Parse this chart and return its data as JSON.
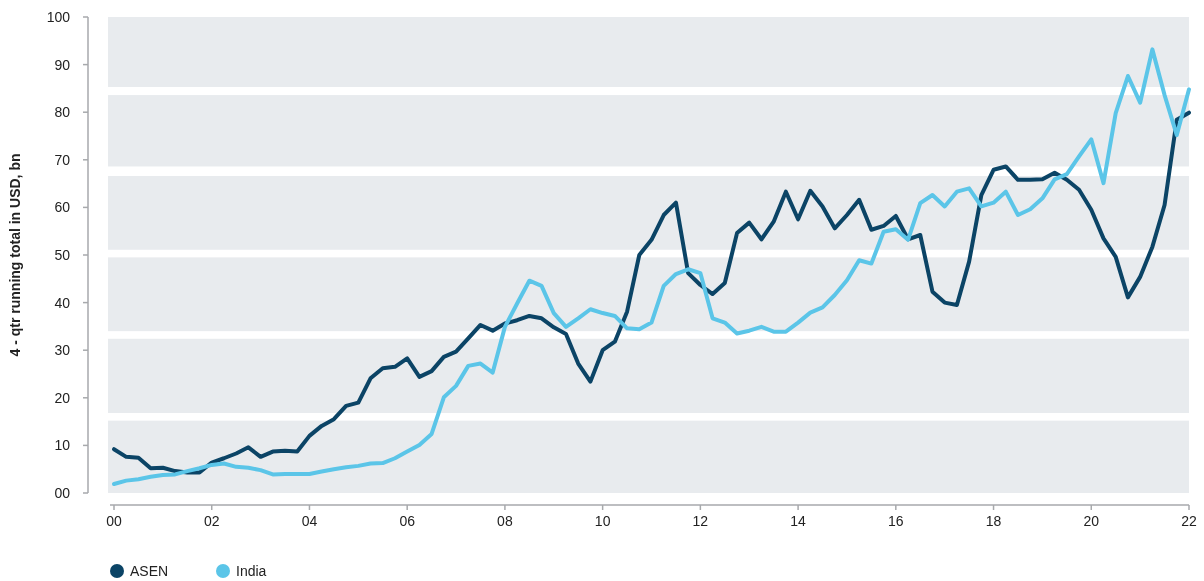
{
  "chart_data": {
    "type": "line",
    "ylabel": "4 - qtr running total in USD, bn",
    "x": [
      2000,
      2000.25,
      2000.5,
      2000.75,
      2001,
      2001.25,
      2001.5,
      2001.75,
      2002,
      2002.25,
      2002.5,
      2002.75,
      2003,
      2003.25,
      2003.5,
      2003.75,
      2004,
      2004.25,
      2004.5,
      2004.75,
      2005,
      2005.25,
      2005.5,
      2005.75,
      2006,
      2006.25,
      2006.5,
      2006.75,
      2007,
      2007.25,
      2007.5,
      2007.75,
      2008,
      2008.25,
      2008.5,
      2008.75,
      2009,
      2009.25,
      2009.5,
      2009.75,
      2010,
      2010.25,
      2010.5,
      2010.75,
      2011,
      2011.25,
      2011.5,
      2011.75,
      2012,
      2012.25,
      2012.5,
      2012.75,
      2013,
      2013.25,
      2013.5,
      2013.75,
      2014,
      2014.25,
      2014.5,
      2014.75,
      2015,
      2015.25,
      2015.5,
      2015.75,
      2016,
      2016.25,
      2016.5,
      2016.75,
      2017,
      2017.25,
      2017.5,
      2017.75,
      2018,
      2018.25,
      2018.5,
      2018.75,
      2019,
      2019.25,
      2019.5,
      2019.75,
      2020,
      2020.25,
      2020.5,
      2020.75,
      2021,
      2021.25,
      2021.5,
      2021.75,
      2022
    ],
    "series": [
      {
        "name": "ASEN",
        "color": "#0b4466",
        "values": [
          9.2,
          7.6,
          7.4,
          5.2,
          5.3,
          4.6,
          4.3,
          4.3,
          6.4,
          7.3,
          8.3,
          9.6,
          7.6,
          8.7,
          8.9,
          8.7,
          12.0,
          14.1,
          15.5,
          18.3,
          19.0,
          24.1,
          26.2,
          26.5,
          28.3,
          24.4,
          25.6,
          28.6,
          29.7,
          32.5,
          35.3,
          34.1,
          35.6,
          36.3,
          37.2,
          36.7,
          34.8,
          33.4,
          27.2,
          23.4,
          30.0,
          31.8,
          38.1,
          50.0,
          53.2,
          58.4,
          61.0,
          46.2,
          43.7,
          41.8,
          44.1,
          54.6,
          56.8,
          53.3,
          57.0,
          63.3,
          57.5,
          63.5,
          60.2,
          55.6,
          58.4,
          61.6,
          55.3,
          56.1,
          58.2,
          53.3,
          54.2,
          42.3,
          40.0,
          39.5,
          48.6,
          62.6,
          67.9,
          68.6,
          65.8,
          65.8,
          65.9,
          67.3,
          65.8,
          63.7,
          59.5,
          53.5,
          49.6,
          41.1,
          45.4,
          51.7,
          60.5,
          78.4,
          79.9
        ]
      },
      {
        "name": "India",
        "color": "#5bc5e8",
        "values": [
          1.9,
          2.6,
          2.9,
          3.4,
          3.8,
          3.9,
          4.6,
          5.2,
          5.9,
          6.2,
          5.5,
          5.3,
          4.8,
          3.9,
          4.0,
          4.0,
          4.0,
          4.5,
          5.0,
          5.4,
          5.7,
          6.2,
          6.3,
          7.3,
          8.7,
          10.1,
          12.4,
          20.1,
          22.5,
          26.7,
          27.2,
          25.3,
          34.9,
          39.8,
          44.6,
          43.5,
          37.8,
          34.9,
          36.7,
          38.6,
          37.8,
          37.2,
          34.6,
          34.4,
          35.8,
          43.5,
          46.0,
          47.0,
          46.2,
          36.7,
          35.8,
          33.5,
          34.1,
          34.9,
          33.9,
          33.9,
          35.8,
          37.9,
          39.0,
          41.6,
          44.7,
          48.9,
          48.2,
          54.9,
          55.4,
          53.2,
          60.9,
          62.6,
          60.2,
          63.3,
          64.0,
          60.2,
          61.0,
          63.3,
          58.4,
          59.6,
          61.9,
          65.9,
          67.0,
          70.7,
          74.3,
          65.1,
          79.8,
          87.6,
          82.0,
          93.2,
          83.6,
          75.2,
          84.8
        ]
      }
    ],
    "xlim": [
      2000,
      2022
    ],
    "xticks": [
      {
        "value": 2000,
        "label": "00"
      },
      {
        "value": 2002,
        "label": "02"
      },
      {
        "value": 2004,
        "label": "04"
      },
      {
        "value": 2006,
        "label": "06"
      },
      {
        "value": 2008,
        "label": "08"
      },
      {
        "value": 2010,
        "label": "10"
      },
      {
        "value": 2012,
        "label": "12"
      },
      {
        "value": 2014,
        "label": "14"
      },
      {
        "value": 2016,
        "label": "16"
      },
      {
        "value": 2018,
        "label": "18"
      },
      {
        "value": 2020,
        "label": "20"
      },
      {
        "value": 2022,
        "label": "22"
      }
    ],
    "ylim": [
      0,
      100
    ],
    "yticks": [
      {
        "value": 0,
        "label": "00"
      },
      10,
      20,
      30,
      40,
      50,
      60,
      70,
      80,
      90,
      100
    ],
    "bands": [
      {
        "axis": "y",
        "from": 0,
        "to": 15.2,
        "color": "#e8ebee"
      },
      {
        "axis": "y",
        "from": 16.8,
        "to": 32.4,
        "color": "#e8ebee"
      },
      {
        "axis": "y",
        "from": 34,
        "to": 49.5,
        "color": "#e8ebee"
      },
      {
        "axis": "y",
        "from": 51.1,
        "to": 66.6,
        "color": "#e8ebee"
      },
      {
        "axis": "y",
        "from": 68.6,
        "to": 83.6,
        "color": "#e8ebee"
      },
      {
        "axis": "y",
        "from": 85.3,
        "to": 100,
        "color": "#e8ebee"
      }
    ],
    "grid": false,
    "legend": "bottom left",
    "marker": "none",
    "line_style": "solid"
  }
}
